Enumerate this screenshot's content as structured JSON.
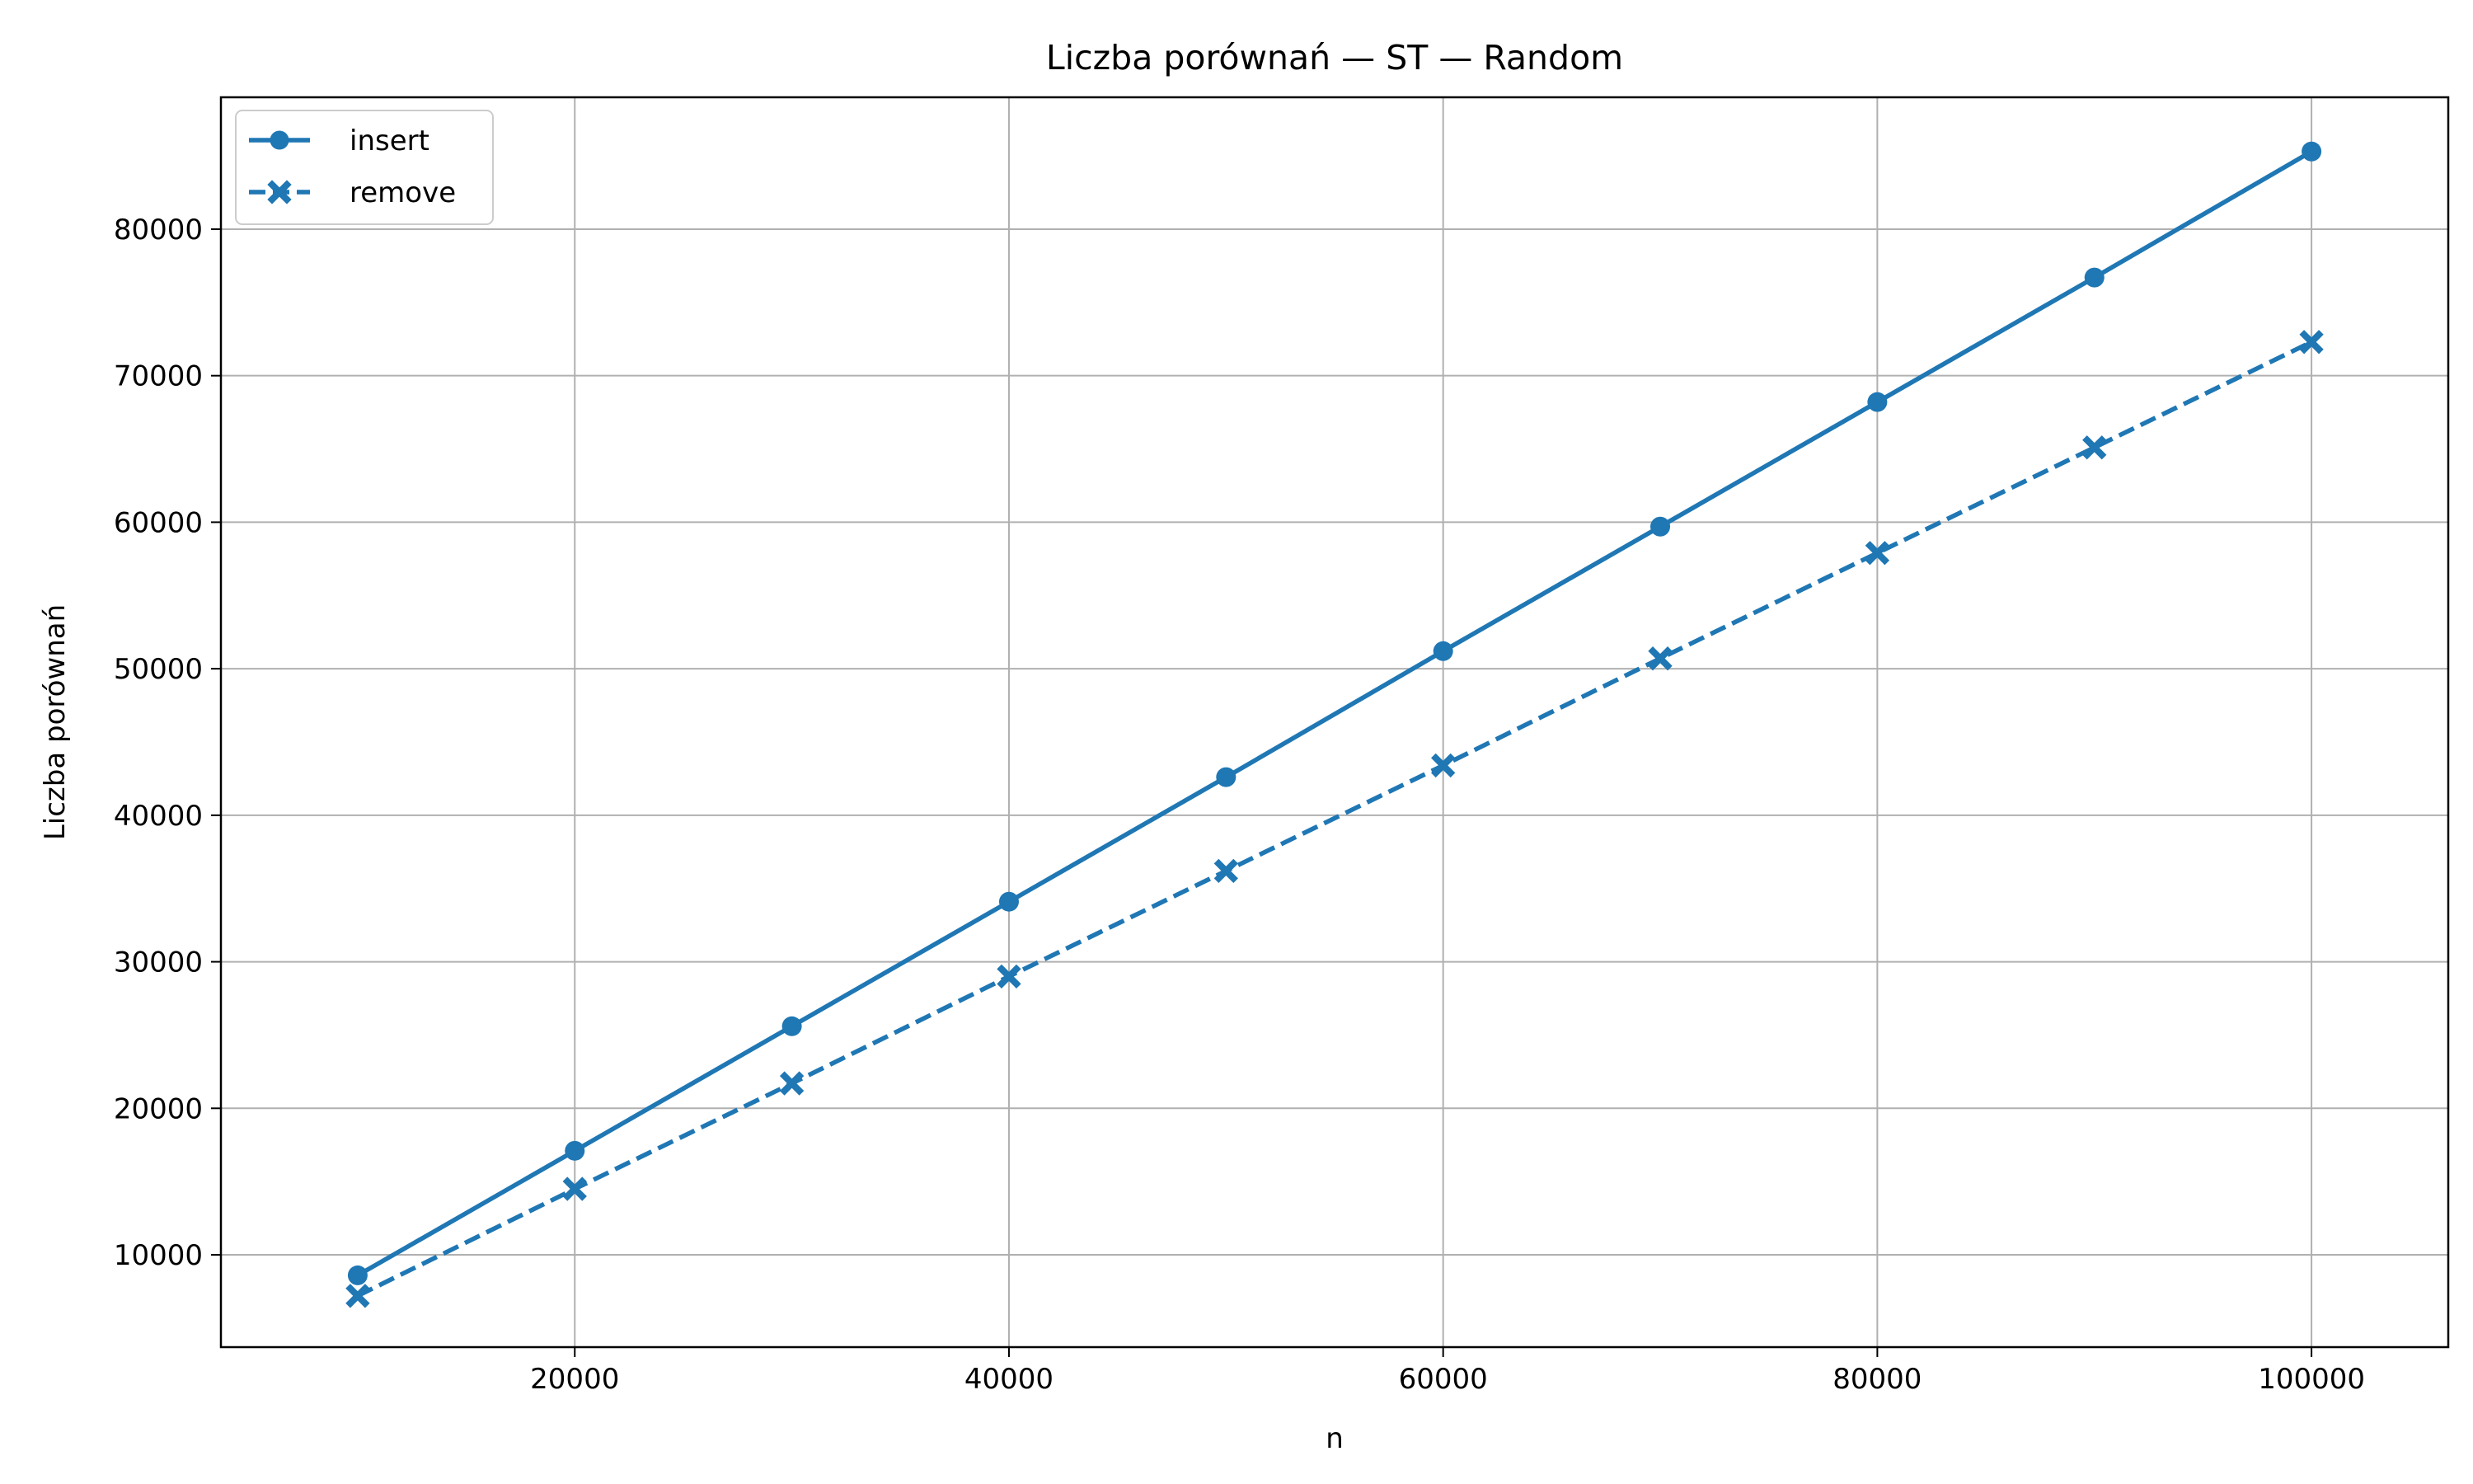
{
  "chart_data": {
    "type": "line",
    "title": "Liczba porównań — ST — Random",
    "xlabel": "n",
    "ylabel": "Liczba porównań",
    "x": [
      10000,
      20000,
      30000,
      40000,
      50000,
      60000,
      70000,
      80000,
      90000,
      100000
    ],
    "xlim": [
      3700,
      106300
    ],
    "ylim": [
      3700,
      89000
    ],
    "xticks": [
      20000,
      40000,
      60000,
      80000,
      100000
    ],
    "yticks": [
      10000,
      20000,
      30000,
      40000,
      50000,
      60000,
      70000,
      80000
    ],
    "grid": true,
    "legend_position": "top-left",
    "series": [
      {
        "name": "insert",
        "color": "#1f77b4",
        "line_style": "solid",
        "marker": "circle",
        "values": [
          8600,
          17100,
          25600,
          34100,
          42600,
          51200,
          59700,
          68200,
          76700,
          85300
        ]
      },
      {
        "name": "remove",
        "color": "#1f77b4",
        "line_style": "dashed",
        "marker": "x",
        "values": [
          7200,
          14500,
          21700,
          29000,
          36200,
          43400,
          50700,
          57900,
          65100,
          72300
        ]
      }
    ]
  }
}
